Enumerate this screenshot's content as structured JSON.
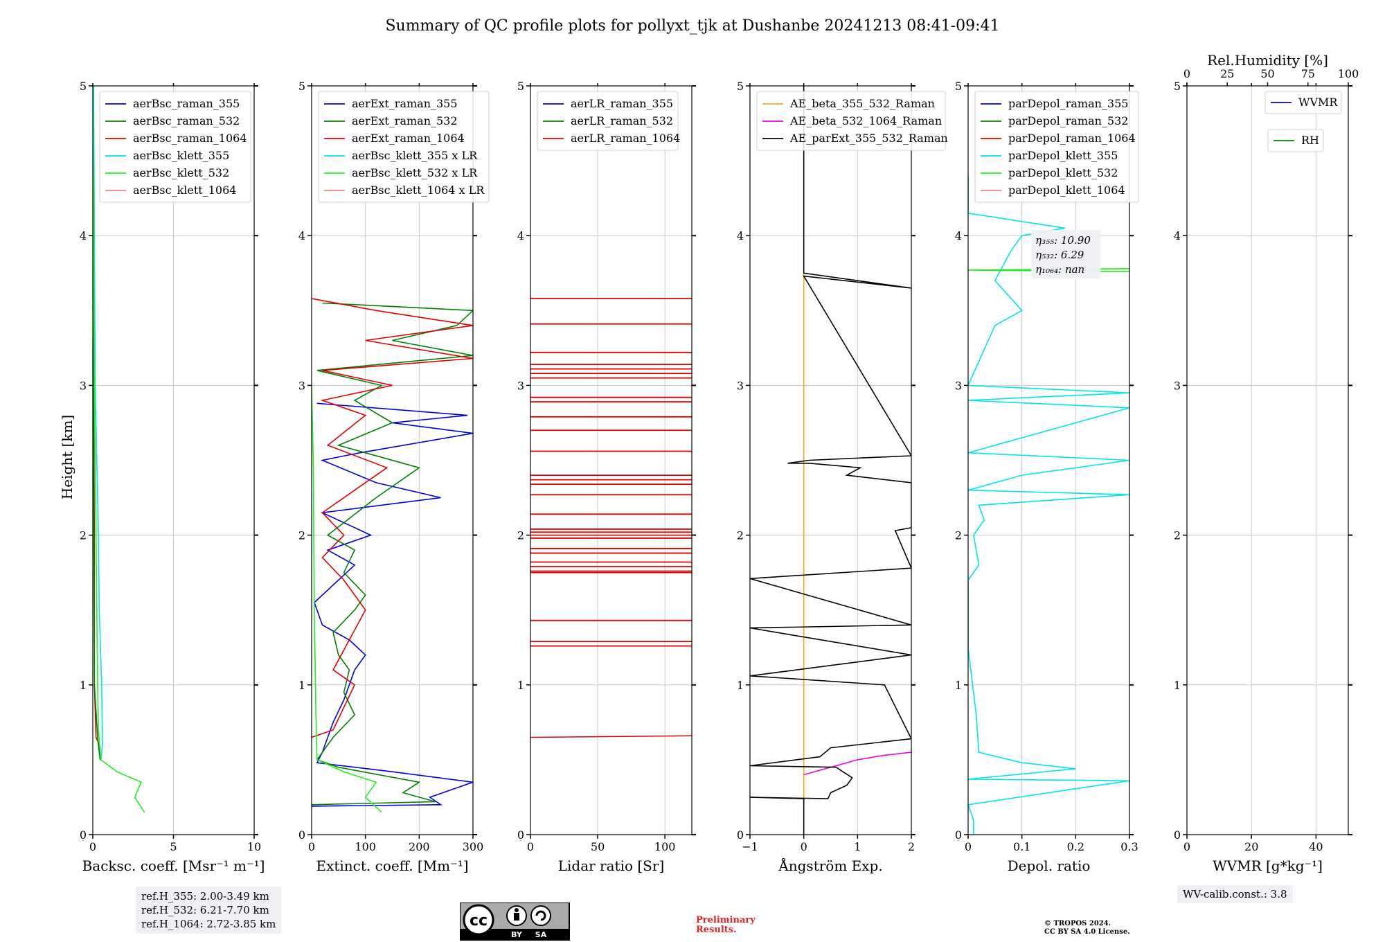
{
  "title": "Summary of QC profile plots for pollyxt_tjk at Dushanbe 20241213 08:41-09:41",
  "y_axis_label": "Height [km]",
  "chart_data": [
    {
      "type": "line",
      "xlabel": "Backsc. coeff. [Msr⁻¹ m⁻¹]",
      "xlim": [
        0,
        10
      ],
      "xticks": [
        0,
        5,
        10
      ],
      "ylim": [
        0,
        5
      ],
      "yticks": [
        0,
        1,
        2,
        3,
        4,
        5
      ],
      "legend": [
        "aerBsc_raman_355",
        "aerBsc_raman_532",
        "aerBsc_raman_1064",
        "aerBsc_klett_355",
        "aerBsc_klett_532",
        "aerBsc_klett_1064"
      ],
      "series": [
        {
          "name": "aerBsc_raman_1064",
          "color": "#e00000",
          "points": [
            [
              0.5,
              0.5
            ],
            [
              0.4,
              0.6
            ],
            [
              0.2,
              0.65
            ],
            [
              0.1,
              1.0
            ],
            [
              0.1,
              2.0
            ],
            [
              0.05,
              3.0
            ],
            [
              0.05,
              4.0
            ],
            [
              0.0,
              5.0
            ]
          ]
        },
        {
          "name": "aerBsc_raman_532",
          "color": "#008000",
          "points": [
            [
              0.45,
              0.5
            ],
            [
              0.3,
              0.65
            ],
            [
              0.1,
              1.0
            ],
            [
              0.05,
              2.5
            ],
            [
              0.0,
              5.0
            ]
          ]
        },
        {
          "name": "aerBsc_klett_355",
          "color": "#00e5e5",
          "points": [
            [
              0.5,
              0.5
            ],
            [
              0.6,
              0.6
            ],
            [
              0.55,
              1.0
            ],
            [
              0.4,
              1.5
            ],
            [
              0.35,
              2.0
            ],
            [
              0.25,
              2.5
            ],
            [
              0.15,
              3.0
            ],
            [
              0.1,
              4.0
            ],
            [
              0.05,
              5.0
            ]
          ]
        },
        {
          "name": "aerBsc_klett_532",
          "color": "#20ee20",
          "points": [
            [
              3.2,
              0.15
            ],
            [
              2.6,
              0.25
            ],
            [
              2.8,
              0.3
            ],
            [
              3.0,
              0.35
            ],
            [
              1.5,
              0.42
            ],
            [
              0.5,
              0.5
            ],
            [
              0.35,
              0.7
            ],
            [
              0.3,
              1.0
            ],
            [
              0.25,
              1.5
            ],
            [
              0.2,
              2.0
            ],
            [
              0.1,
              3.0
            ],
            [
              0.05,
              4.0
            ],
            [
              0.0,
              5.0
            ]
          ]
        }
      ]
    },
    {
      "type": "line",
      "xlabel": "Extinct. coeff. [Mm⁻¹]",
      "xlim": [
        0,
        300
      ],
      "xticks": [
        0,
        100,
        200,
        300
      ],
      "ylim": [
        0,
        5
      ],
      "yticks": [
        0,
        1,
        2,
        3,
        4,
        5
      ],
      "legend": [
        "aerExt_raman_355",
        "aerExt_raman_532",
        "aerExt_raman_1064",
        "aerBsc_klett_355 x LR",
        "aerBsc_klett_532 x LR",
        "aerBsc_klett_1064 x LR"
      ],
      "series": [
        {
          "name": "aerExt_raman_355",
          "color": "#0000dd",
          "points": [
            [
              0,
              0.19
            ],
            [
              240,
              0.2
            ],
            [
              220,
              0.25
            ],
            [
              300,
              0.35
            ],
            [
              150,
              0.42
            ],
            [
              10,
              0.48
            ],
            [
              20,
              0.55
            ],
            [
              40,
              0.75
            ],
            [
              60,
              0.9
            ],
            [
              80,
              1.1
            ],
            [
              100,
              1.2
            ],
            [
              70,
              1.3
            ],
            [
              20,
              1.4
            ],
            [
              5,
              1.55
            ],
            [
              80,
              1.8
            ],
            [
              30,
              1.9
            ],
            [
              110,
              2.0
            ],
            [
              20,
              2.15
            ],
            [
              240,
              2.25
            ],
            [
              120,
              2.35
            ],
            [
              20,
              2.5
            ],
            [
              90,
              2.55
            ],
            [
              300,
              2.68
            ],
            [
              150,
              2.75
            ],
            [
              290,
              2.8
            ],
            [
              10,
              2.88
            ]
          ]
        },
        {
          "name": "aerExt_raman_532",
          "color": "#008000",
          "points": [
            [
              0,
              0.2
            ],
            [
              230,
              0.22
            ],
            [
              170,
              0.28
            ],
            [
              200,
              0.35
            ],
            [
              50,
              0.45
            ],
            [
              10,
              0.5
            ],
            [
              40,
              0.65
            ],
            [
              80,
              0.8
            ],
            [
              60,
              0.95
            ],
            [
              70,
              1.1
            ],
            [
              50,
              1.2
            ],
            [
              40,
              1.35
            ],
            [
              80,
              1.5
            ],
            [
              100,
              1.6
            ],
            [
              60,
              1.75
            ],
            [
              80,
              1.9
            ],
            [
              30,
              2.0
            ],
            [
              120,
              2.25
            ],
            [
              200,
              2.45
            ],
            [
              50,
              2.6
            ],
            [
              150,
              2.75
            ],
            [
              80,
              2.9
            ],
            [
              130,
              3.0
            ],
            [
              10,
              3.1
            ],
            [
              300,
              3.2
            ],
            [
              150,
              3.3
            ],
            [
              270,
              3.4
            ],
            [
              300,
              3.5
            ],
            [
              20,
              3.55
            ]
          ]
        },
        {
          "name": "aerExt_raman_1064",
          "color": "#e00000",
          "points": [
            [
              0,
              0.65
            ],
            [
              40,
              0.7
            ],
            [
              60,
              0.85
            ],
            [
              80,
              1.0
            ],
            [
              40,
              1.1
            ],
            [
              70,
              1.3
            ],
            [
              100,
              1.5
            ],
            [
              60,
              1.7
            ],
            [
              20,
              1.85
            ],
            [
              60,
              2.0
            ],
            [
              20,
              2.15
            ],
            [
              80,
              2.3
            ],
            [
              140,
              2.45
            ],
            [
              30,
              2.6
            ],
            [
              100,
              2.8
            ],
            [
              20,
              2.9
            ],
            [
              150,
              3.0
            ],
            [
              20,
              3.1
            ],
            [
              300,
              3.18
            ],
            [
              100,
              3.3
            ],
            [
              300,
              3.4
            ],
            [
              120,
              3.5
            ],
            [
              0,
              3.58
            ]
          ]
        },
        {
          "name": "aerBsc_klett_532 x LR",
          "color": "#20ee20",
          "points": [
            [
              130,
              0.15
            ],
            [
              100,
              0.25
            ],
            [
              120,
              0.35
            ],
            [
              60,
              0.42
            ],
            [
              10,
              0.5
            ],
            [
              8,
              0.8
            ],
            [
              5,
              1.5
            ],
            [
              3,
              2.5
            ],
            [
              0,
              3.0
            ]
          ]
        }
      ]
    },
    {
      "type": "line",
      "xlabel": "Lidar ratio [Sr]",
      "xlim": [
        0,
        120
      ],
      "xticks": [
        0,
        50,
        100
      ],
      "ylim": [
        0,
        5
      ],
      "yticks": [
        0,
        1,
        2,
        3,
        4,
        5
      ],
      "legend": [
        "aerLR_raman_355",
        "aerLR_raman_532",
        "aerLR_raman_1064"
      ],
      "hlines_color": "#e00000",
      "hlines": [
        3.58,
        3.41,
        3.22,
        3.14,
        3.11,
        3.08,
        3.05,
        2.92,
        2.89,
        2.79,
        2.7,
        2.56,
        2.4,
        2.37,
        2.34,
        2.27,
        2.14,
        2.04,
        2.02,
        2.0,
        1.98,
        1.91,
        1.88,
        1.82,
        1.79,
        1.76,
        1.75,
        1.43,
        1.29,
        1.26
      ]
    },
    {
      "type": "line",
      "xlabel": "Ångström Exp.",
      "xlim": [
        -1,
        2
      ],
      "xticks": [
        -1,
        0,
        1,
        2
      ],
      "ylim": [
        0,
        5
      ],
      "yticks": [
        0,
        1,
        2,
        3,
        4,
        5
      ],
      "legend": [
        "AE_beta_355_532_Raman",
        "AE_beta_532_1064_Raman",
        "AE_parExt_355_532_Raman"
      ],
      "series": [
        {
          "name": "AE_beta_355_532_Raman",
          "color": "#f5a623",
          "points": [
            [
              0,
              0.0
            ],
            [
              0,
              5.0
            ]
          ]
        },
        {
          "name": "AE_beta_532_1064_Raman",
          "color": "#ee00ee",
          "points": [
            [
              0,
              0.4
            ],
            [
              0.5,
              0.45
            ],
            [
              1.0,
              0.5
            ],
            [
              1.5,
              0.53
            ],
            [
              2,
              0.55
            ]
          ]
        },
        {
          "name": "AE_parExt_355_532_Raman",
          "color": "#000000",
          "points": [
            [
              0,
              0.0
            ],
            [
              0,
              0.24
            ],
            [
              -1,
              0.25
            ],
            [
              0.45,
              0.24
            ],
            [
              0.5,
              0.28
            ],
            [
              0.8,
              0.33
            ],
            [
              0.9,
              0.38
            ],
            [
              0.6,
              0.45
            ],
            [
              -1,
              0.46
            ],
            [
              0.3,
              0.52
            ],
            [
              0.5,
              0.58
            ],
            [
              2,
              0.64
            ],
            [
              1.5,
              1.0
            ],
            [
              -1,
              1.06
            ],
            [
              2,
              1.2
            ],
            [
              -1,
              1.38
            ],
            [
              2,
              1.4
            ],
            [
              -1,
              1.71
            ],
            [
              2,
              1.78
            ],
            [
              1.7,
              2.03
            ],
            [
              2,
              2.05
            ],
            [
              2,
              2.35
            ],
            [
              0.8,
              2.4
            ],
            [
              1.05,
              2.45
            ],
            [
              0.1,
              2.48
            ],
            [
              -0.3,
              2.48
            ],
            [
              0.1,
              2.5
            ],
            [
              2,
              2.53
            ],
            [
              0,
              3.73
            ],
            [
              2,
              3.65
            ],
            [
              0,
              3.75
            ],
            [
              0,
              5.0
            ]
          ]
        }
      ]
    },
    {
      "type": "line",
      "xlabel": "Depol. ratio",
      "xlim": [
        0.0,
        0.3
      ],
      "xticks": [
        0.0,
        0.1,
        0.2,
        0.3
      ],
      "ylim": [
        0,
        5
      ],
      "yticks": [
        0,
        1,
        2,
        3,
        4,
        5
      ],
      "legend": [
        "parDepol_raman_355",
        "parDepol_raman_532",
        "parDepol_raman_1064",
        "parDepol_klett_355",
        "parDepol_klett_532",
        "parDepol_klett_1064"
      ],
      "annotation": [
        "η₃₅₅: 10.90",
        "η₅₃₂: 6.29",
        "η₁₀₆₄: nan"
      ],
      "series": [
        {
          "name": "parDepol_klett_355",
          "color": "#00e5e5",
          "points": [
            [
              0.01,
              0.0
            ],
            [
              0.01,
              0.1
            ],
            [
              0.0,
              0.2
            ],
            [
              0.3,
              0.36
            ],
            [
              0.0,
              0.37
            ],
            [
              0.2,
              0.44
            ],
            [
              0.1,
              0.48
            ],
            [
              0.02,
              0.55
            ],
            [
              0.015,
              0.8
            ],
            [
              0.0,
              1.25
            ],
            [
              0.0,
              1.7
            ],
            [
              0.02,
              1.8
            ],
            [
              0.01,
              2.0
            ],
            [
              0.03,
              2.1
            ],
            [
              0.02,
              2.2
            ],
            [
              0.3,
              2.27
            ],
            [
              0.0,
              2.3
            ],
            [
              0.1,
              2.4
            ],
            [
              0.3,
              2.5
            ],
            [
              0.0,
              2.55
            ],
            [
              0.3,
              2.85
            ],
            [
              0.0,
              2.9
            ],
            [
              0.3,
              2.95
            ],
            [
              0.0,
              3.0
            ],
            [
              0.05,
              3.4
            ],
            [
              0.1,
              3.5
            ],
            [
              0.05,
              3.7
            ],
            [
              0.08,
              3.9
            ],
            [
              0.1,
              4.0
            ],
            [
              0.18,
              4.05
            ],
            [
              0.0,
              4.15
            ],
            [
              0.0,
              4.4
            ]
          ]
        },
        {
          "name": "parDepol_klett_532",
          "color": "#20ee20",
          "points": [
            [
              0.3,
              3.76
            ],
            [
              0.0,
              3.77
            ],
            [
              0.3,
              3.78
            ]
          ]
        }
      ]
    },
    {
      "type": "line",
      "xlabel": "WVMR [g*kg⁻¹]",
      "xlim": [
        0,
        50
      ],
      "xticks": [
        0,
        20,
        40
      ],
      "top_label": "Rel.Humidity [%]",
      "top_ticks": [
        0,
        25,
        50,
        75,
        100
      ],
      "ylim": [
        0,
        5
      ],
      "yticks": [
        0,
        1,
        2,
        3,
        4,
        5
      ],
      "legend": [
        "WVMR",
        "RH"
      ],
      "series": []
    }
  ],
  "ref_text": [
    "ref.H_355: 2.00-3.49 km",
    "ref.H_532: 6.21-7.70 km",
    "ref.H_1064: 2.72-3.85 km"
  ],
  "wv_text": "WV-calib.const.: 3.8",
  "prelim_text": [
    "Preliminary",
    "Results."
  ],
  "copyright_text": [
    "© TROPOS 2024.",
    "CC BY SA 4.0 License."
  ],
  "cc_labels": [
    "cc",
    "BY",
    "SA"
  ],
  "legend_colors": {
    "aerBsc_raman_355": "#0000dd",
    "aerBsc_raman_532": "#008000",
    "aerBsc_raman_1064": "#e00000",
    "aerBsc_klett_355": "#00e5e5",
    "aerBsc_klett_532": "#20ee20",
    "aerBsc_klett_1064": "#f08080",
    "aerExt_raman_355": "#0000dd",
    "aerExt_raman_532": "#008000",
    "aerExt_raman_1064": "#e00000",
    "aerBsc_klett_355 x LR": "#00e5e5",
    "aerBsc_klett_532 x LR": "#20ee20",
    "aerBsc_klett_1064 x LR": "#f08080",
    "aerLR_raman_355": "#0000dd",
    "aerLR_raman_532": "#008000",
    "aerLR_raman_1064": "#e00000",
    "AE_beta_355_532_Raman": "#f5a623",
    "AE_beta_532_1064_Raman": "#ee00ee",
    "AE_parExt_355_532_Raman": "#000000",
    "parDepol_raman_355": "#0000dd",
    "parDepol_raman_532": "#008000",
    "parDepol_raman_1064": "#e00000",
    "parDepol_klett_355": "#00e5e5",
    "parDepol_klett_532": "#20ee20",
    "parDepol_klett_1064": "#f08080",
    "WVMR": "#0000dd",
    "RH": "#008000"
  }
}
